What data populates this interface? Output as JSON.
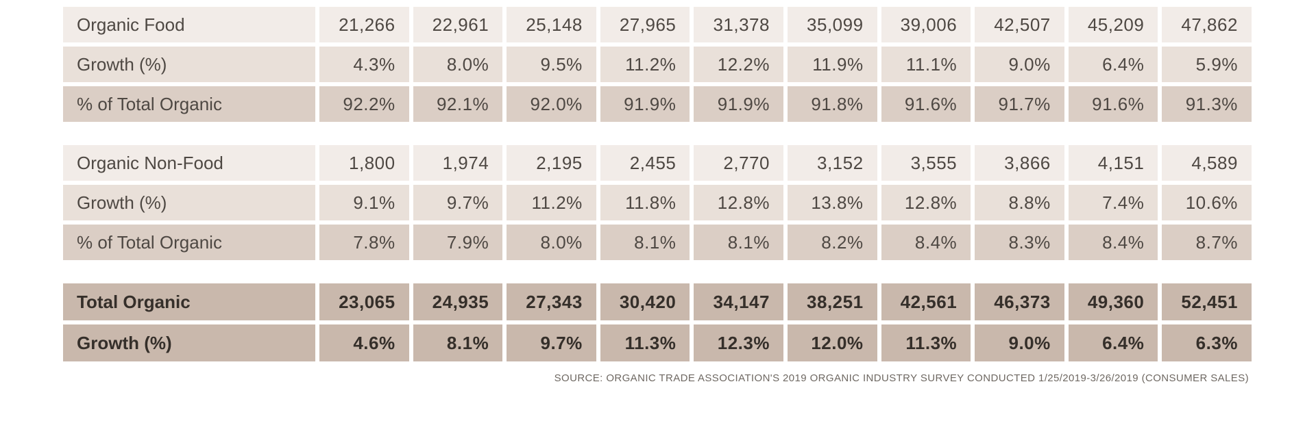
{
  "chart_data": {
    "type": "table",
    "sections": [
      {
        "name": "organic-food",
        "rows": [
          {
            "label": "Organic Food",
            "style": "row-light",
            "values": [
              "21,266",
              "22,961",
              "25,148",
              "27,965",
              "31,378",
              "35,099",
              "39,006",
              "42,507",
              "45,209",
              "47,862"
            ]
          },
          {
            "label": "Growth (%)",
            "style": "row-mid",
            "values": [
              "4.3%",
              "8.0%",
              "9.5%",
              "11.2%",
              "12.2%",
              "11.9%",
              "11.1%",
              "9.0%",
              "6.4%",
              "5.9%"
            ]
          },
          {
            "label": "% of Total Organic",
            "style": "row-dark",
            "values": [
              "92.2%",
              "92.1%",
              "92.0%",
              "91.9%",
              "91.9%",
              "91.8%",
              "91.6%",
              "91.7%",
              "91.6%",
              "91.3%"
            ]
          }
        ]
      },
      {
        "name": "organic-non-food",
        "rows": [
          {
            "label": "Organic Non-Food",
            "style": "row-light",
            "values": [
              "1,800",
              "1,974",
              "2,195",
              "2,455",
              "2,770",
              "3,152",
              "3,555",
              "3,866",
              "4,151",
              "4,589"
            ]
          },
          {
            "label": "Growth (%)",
            "style": "row-mid",
            "values": [
              "9.1%",
              "9.7%",
              "11.2%",
              "11.8%",
              "12.8%",
              "13.8%",
              "12.8%",
              "8.8%",
              "7.4%",
              "10.6%"
            ]
          },
          {
            "label": "% of Total Organic",
            "style": "row-dark",
            "values": [
              "7.8%",
              "7.9%",
              "8.0%",
              "8.1%",
              "8.1%",
              "8.2%",
              "8.4%",
              "8.3%",
              "8.4%",
              "8.7%"
            ]
          }
        ]
      },
      {
        "name": "total-organic",
        "rows": [
          {
            "label": "Total Organic",
            "style": "row-total",
            "values": [
              "23,065",
              "24,935",
              "27,343",
              "30,420",
              "34,147",
              "38,251",
              "42,561",
              "46,373",
              "49,360",
              "52,451"
            ]
          },
          {
            "label": "Growth (%)",
            "style": "row-total",
            "values": [
              "4.6%",
              "8.1%",
              "9.7%",
              "11.3%",
              "12.3%",
              "12.0%",
              "11.3%",
              "9.0%",
              "6.4%",
              "6.3%"
            ]
          }
        ]
      }
    ],
    "source": "SOURCE: ORGANIC TRADE ASSOCIATION'S 2019 ORGANIC INDUSTRY SURVEY CONDUCTED 1/25/2019-3/26/2019 (CONSUMER SALES)",
    "colors": {
      "row_light": "#f2ece8",
      "row_mid": "#e9e0d9",
      "row_dark": "#dbcec5",
      "row_total": "#c9b8ac",
      "text": "#4e4843",
      "text_total": "#352f2a"
    }
  }
}
